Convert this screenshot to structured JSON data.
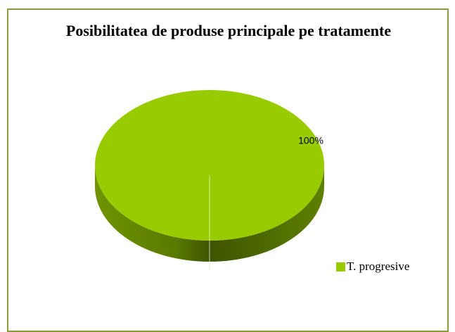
{
  "chart_data": {
    "type": "pie",
    "title": "Posibilitatea de produse principale pe tratamente",
    "categories": [
      "T. progresive"
    ],
    "values": [
      100
    ],
    "value_labels": [
      "100%"
    ],
    "colors": [
      "#99cc00"
    ],
    "legend": "right"
  }
}
